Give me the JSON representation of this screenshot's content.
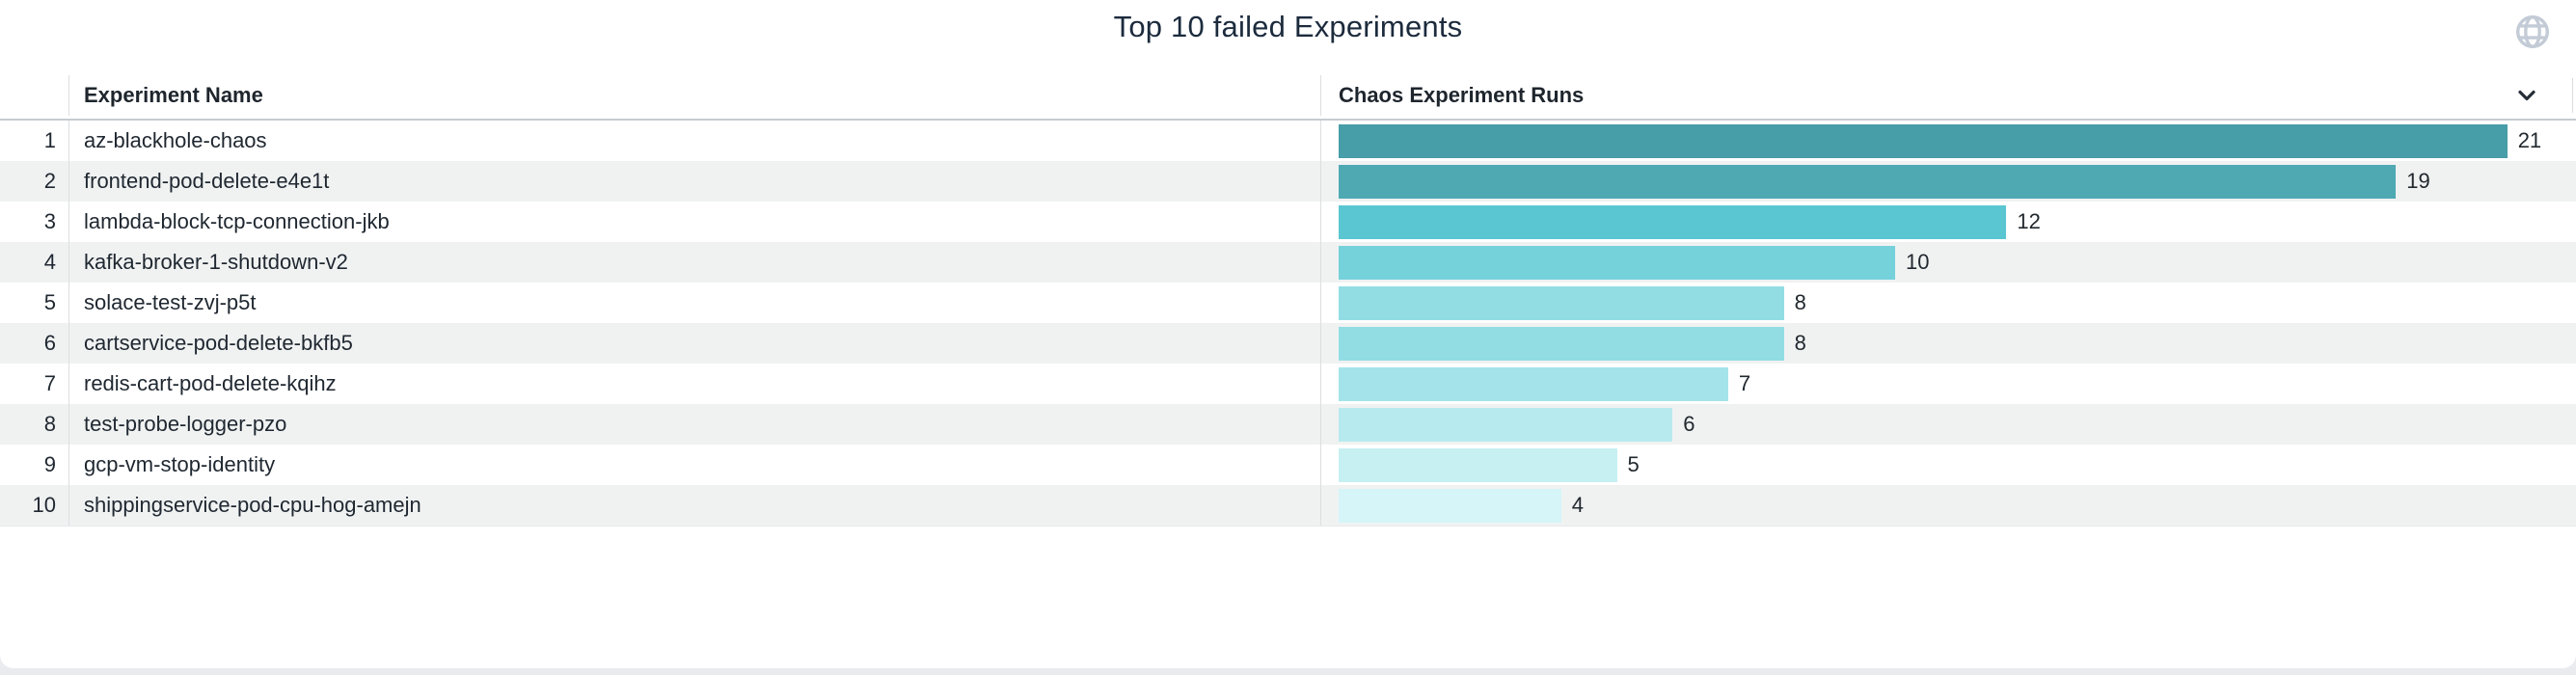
{
  "title": "Top 10 failed Experiments",
  "icons": {
    "globe": "globe-icon",
    "chevron": "chevron-down-icon"
  },
  "colors": {
    "title_text": "#1c2b3d",
    "globe_icon": "#c3cbd6",
    "chevron_icon": "#262e39",
    "stripe_row": "#f0f2f2",
    "header_border": "#c6cbd0",
    "column_divider": "#dcdee0"
  },
  "table": {
    "columns": [
      "Experiment Name",
      "Chaos Experiment Runs"
    ],
    "rows": [
      {
        "rank": "1",
        "name": "az-blackhole-chaos",
        "runs": 21,
        "color": "#479da8"
      },
      {
        "rank": "2",
        "name": "frontend-pod-delete-e4e1t",
        "runs": 19,
        "color": "#4fa9b3"
      },
      {
        "rank": "3",
        "name": "lambda-block-tcp-connection-jkb",
        "runs": 12,
        "color": "#5ac6d2"
      },
      {
        "rank": "4",
        "name": "kafka-broker-1-shutdown-v2",
        "runs": 10,
        "color": "#75d1da"
      },
      {
        "rank": "5",
        "name": "solace-test-zvj-p5t",
        "runs": 8,
        "color": "#92dde4"
      },
      {
        "rank": "6",
        "name": "cartservice-pod-delete-bkfb5",
        "runs": 8,
        "color": "#92dde4"
      },
      {
        "rank": "7",
        "name": "redis-cart-pod-delete-kqihz",
        "runs": 7,
        "color": "#a4e3e9"
      },
      {
        "rank": "8",
        "name": "test-probe-logger-pzo",
        "runs": 6,
        "color": "#b7eaee"
      },
      {
        "rank": "9",
        "name": "gcp-vm-stop-identity",
        "runs": 5,
        "color": "#c7f0f3"
      },
      {
        "rank": "10",
        "name": "shippingservice-pod-cpu-hog-amejn",
        "runs": 4,
        "color": "#d5f5f8"
      }
    ]
  },
  "chart_data": {
    "type": "bar",
    "orientation": "horizontal",
    "title": "Top 10 failed Experiments",
    "categories": [
      "az-blackhole-chaos",
      "frontend-pod-delete-e4e1t",
      "lambda-block-tcp-connection-jkb",
      "kafka-broker-1-shutdown-v2",
      "solace-test-zvj-p5t",
      "cartservice-pod-delete-bkfb5",
      "redis-cart-pod-delete-kqihz",
      "test-probe-logger-pzo",
      "gcp-vm-stop-identity",
      "shippingservice-pod-cpu-hog-amejn"
    ],
    "values": [
      21,
      19,
      12,
      10,
      8,
      8,
      7,
      6,
      5,
      4
    ],
    "xlabel": "Chaos Experiment Runs",
    "ylabel": "Experiment Name",
    "xlim": [
      0,
      22
    ],
    "grid": false,
    "legend": false,
    "data_labels": true,
    "color_scale": [
      "#479da8",
      "#d5f5f8"
    ]
  }
}
